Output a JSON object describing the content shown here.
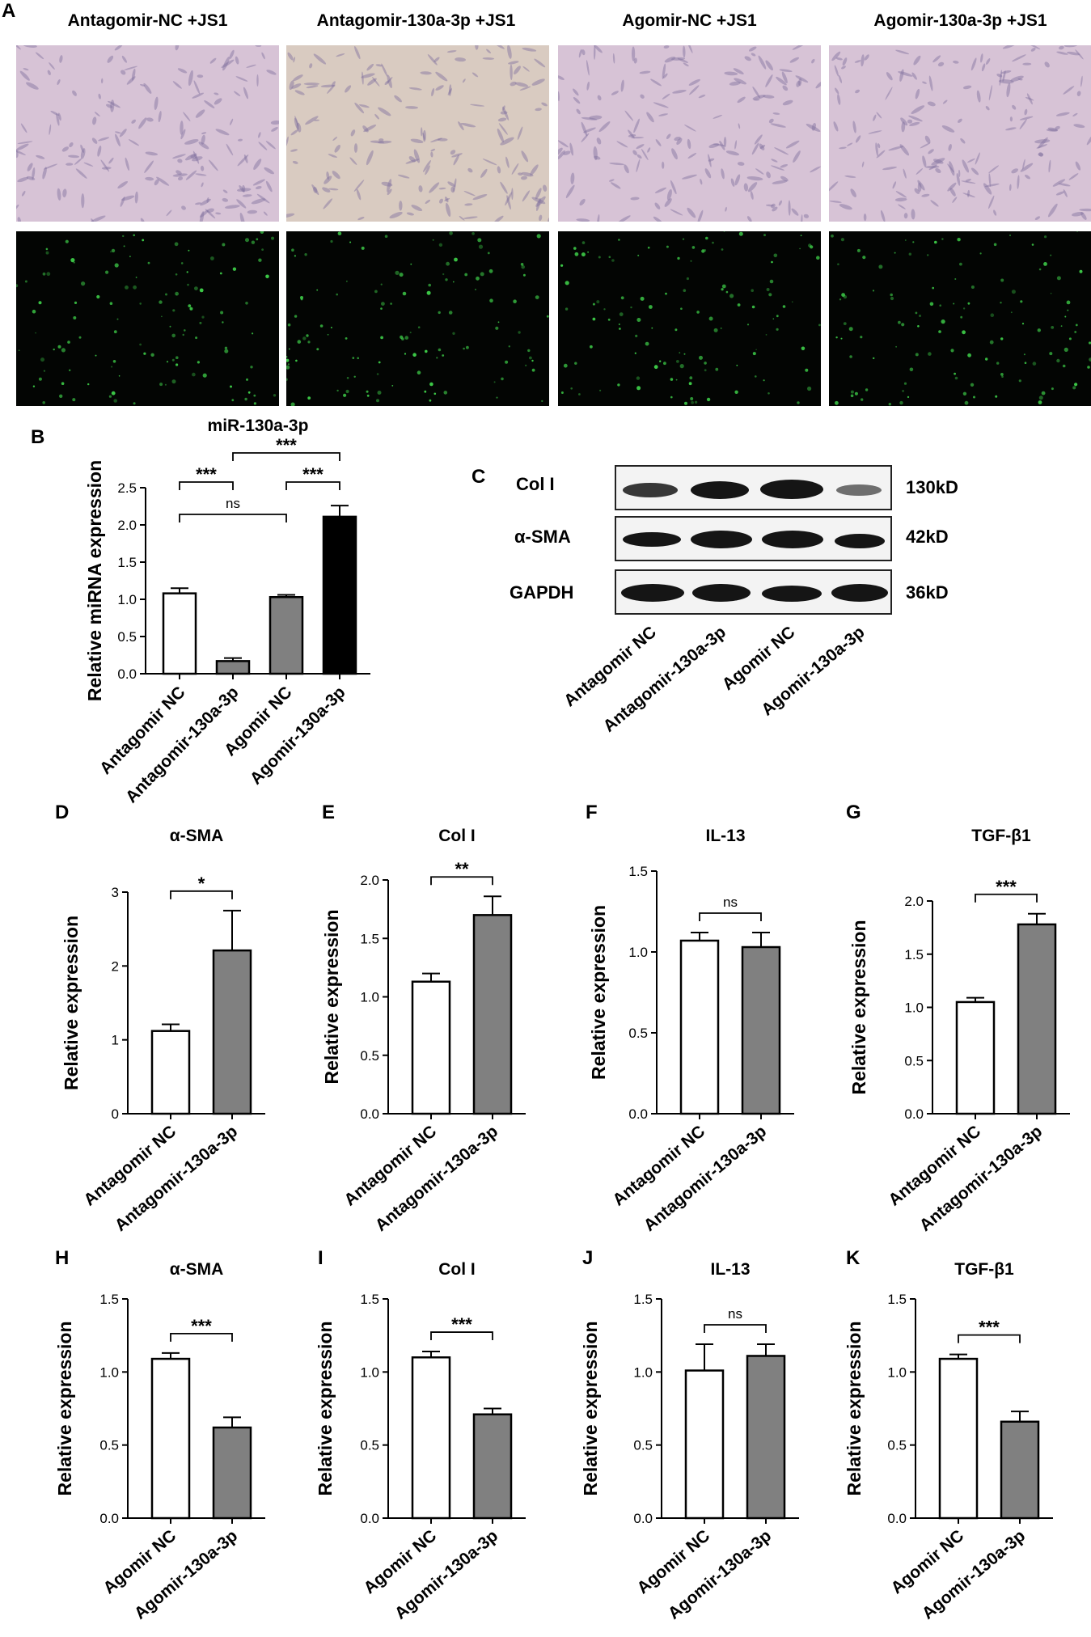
{
  "panels": {
    "A": "A",
    "B": "B",
    "C": "C",
    "D": "D",
    "E": "E",
    "F": "F",
    "G": "G",
    "H": "H",
    "I": "I",
    "J": "J",
    "K": "K"
  },
  "micrographs": {
    "titles": [
      "Antagomir-NC +JS1",
      "Antagomir-130a-3p +JS1",
      "Agomir-NC +JS1",
      "Agomir-130a-3p +JS1"
    ],
    "rows": [
      "brightfield",
      "fluorescence"
    ]
  },
  "western_blot": {
    "proteins": [
      "Col I",
      "α-SMA",
      "GAPDH"
    ],
    "sizes": [
      "130kD",
      "42kD",
      "36kD"
    ],
    "lanes": [
      "Antagomir NC",
      "Antagomir-130a-3p",
      "Agomir NC",
      "Agomir-130a-3p"
    ]
  },
  "chart_data": [
    {
      "id": "B",
      "type": "bar",
      "title": "miR-130a-3p",
      "ylabel": "Relative miRNA expression",
      "categories": [
        "Antagomir NC",
        "Antagomir-130a-3p",
        "Agomir NC",
        "Agomir-130a-3p"
      ],
      "values": [
        1.08,
        0.17,
        1.03,
        2.11
      ],
      "errors": [
        0.07,
        0.04,
        0.03,
        0.15
      ],
      "fills": [
        "#ffffff",
        "#808080",
        "#808080",
        "#000000"
      ],
      "ylim": [
        0,
        2.5
      ],
      "yticks": [
        "0.0",
        "0.5",
        "1.0",
        "1.5",
        "2.0",
        "2.5"
      ],
      "significance": [
        {
          "pair": [
            0,
            1
          ],
          "label": "***"
        },
        {
          "pair": [
            1,
            3
          ],
          "label": "***"
        },
        {
          "pair": [
            2,
            3
          ],
          "label": "***"
        },
        {
          "pair": [
            0,
            2
          ],
          "label": "ns"
        }
      ]
    },
    {
      "id": "D",
      "type": "bar",
      "title": "α-SMA",
      "ylabel": "Relative expression",
      "categories": [
        "Antagomir NC",
        "Antagomir-130a-3p"
      ],
      "values": [
        1.12,
        2.21
      ],
      "errors": [
        0.09,
        0.54
      ],
      "fills": [
        "#ffffff",
        "#808080"
      ],
      "ylim": [
        0,
        3
      ],
      "yticks": [
        "0",
        "1",
        "2",
        "3"
      ],
      "significance": [
        {
          "pair": [
            0,
            1
          ],
          "label": "*"
        }
      ]
    },
    {
      "id": "E",
      "type": "bar",
      "title": "Col I",
      "ylabel": "Relative expression",
      "categories": [
        "Antagomir NC",
        "Antagomir-130a-3p"
      ],
      "values": [
        1.13,
        1.7
      ],
      "errors": [
        0.07,
        0.16
      ],
      "fills": [
        "#ffffff",
        "#808080"
      ],
      "ylim": [
        0,
        2
      ],
      "yticks": [
        "0.0",
        "0.5",
        "1.0",
        "1.5",
        "2.0"
      ],
      "significance": [
        {
          "pair": [
            0,
            1
          ],
          "label": "**"
        }
      ]
    },
    {
      "id": "F",
      "type": "bar",
      "title": "IL-13",
      "ylabel": "Relative expression",
      "categories": [
        "Antagomir NC",
        "Antagomir-130a-3p"
      ],
      "values": [
        1.07,
        1.03
      ],
      "errors": [
        0.05,
        0.09
      ],
      "fills": [
        "#ffffff",
        "#808080"
      ],
      "ylim": [
        0,
        1.5
      ],
      "yticks": [
        "0.0",
        "0.5",
        "1.0",
        "1.5"
      ],
      "significance": [
        {
          "pair": [
            0,
            1
          ],
          "label": "ns"
        }
      ]
    },
    {
      "id": "G",
      "type": "bar",
      "title": "TGF-β1",
      "ylabel": "Relative expression",
      "categories": [
        "Antagomir NC",
        "Antagomir-130a-3p"
      ],
      "values": [
        1.05,
        1.78
      ],
      "errors": [
        0.04,
        0.1
      ],
      "fills": [
        "#ffffff",
        "#808080"
      ],
      "ylim": [
        0,
        2
      ],
      "yticks": [
        "0.0",
        "0.5",
        "1.0",
        "1.5",
        "2.0"
      ],
      "significance": [
        {
          "pair": [
            0,
            1
          ],
          "label": "***"
        }
      ]
    },
    {
      "id": "H",
      "type": "bar",
      "title": "α-SMA",
      "ylabel": "Relative expression",
      "categories": [
        "Agomir NC",
        "Agomir-130a-3p"
      ],
      "values": [
        1.09,
        0.62
      ],
      "errors": [
        0.04,
        0.07
      ],
      "fills": [
        "#ffffff",
        "#808080"
      ],
      "ylim": [
        0,
        1.5
      ],
      "yticks": [
        "0.0",
        "0.5",
        "1.0",
        "1.5"
      ],
      "significance": [
        {
          "pair": [
            0,
            1
          ],
          "label": "***"
        }
      ]
    },
    {
      "id": "I",
      "type": "bar",
      "title": "Col I",
      "ylabel": "Relative expression",
      "categories": [
        "Agomir NC",
        "Agomir-130a-3p"
      ],
      "values": [
        1.1,
        0.71
      ],
      "errors": [
        0.04,
        0.04
      ],
      "fills": [
        "#ffffff",
        "#808080"
      ],
      "ylim": [
        0,
        1.5
      ],
      "yticks": [
        "0.0",
        "0.5",
        "1.0",
        "1.5"
      ],
      "significance": [
        {
          "pair": [
            0,
            1
          ],
          "label": "***"
        }
      ]
    },
    {
      "id": "J",
      "type": "bar",
      "title": "IL-13",
      "ylabel": "Relative expression",
      "categories": [
        "Agomir NC",
        "Agomir-130a-3p"
      ],
      "values": [
        1.01,
        1.11
      ],
      "errors": [
        0.18,
        0.08
      ],
      "fills": [
        "#ffffff",
        "#808080"
      ],
      "ylim": [
        0,
        1.5
      ],
      "yticks": [
        "0.0",
        "0.5",
        "1.0",
        "1.5"
      ],
      "significance": [
        {
          "pair": [
            0,
            1
          ],
          "label": "ns"
        }
      ]
    },
    {
      "id": "K",
      "type": "bar",
      "title": "TGF-β1",
      "ylabel": "Relative expression",
      "categories": [
        "Agomir NC",
        "Agomir-130a-3p"
      ],
      "values": [
        1.09,
        0.66
      ],
      "errors": [
        0.03,
        0.07
      ],
      "fills": [
        "#ffffff",
        "#808080"
      ],
      "ylim": [
        0,
        1.5
      ],
      "yticks": [
        "0.0",
        "0.5",
        "1.0",
        "1.5"
      ],
      "significance": [
        {
          "pair": [
            0,
            1
          ],
          "label": "***"
        }
      ]
    }
  ]
}
